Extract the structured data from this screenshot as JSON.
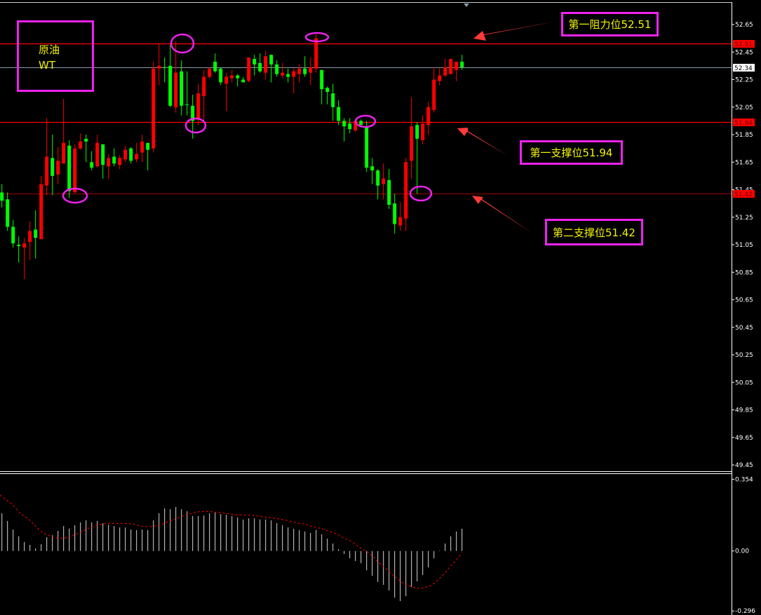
{
  "instrument": {
    "name_line1": "原油",
    "name_line2": "WT"
  },
  "annotations": {
    "resistance1": "第一阻力位52.51",
    "support1": "第一支撑位51.94",
    "support2": "第二支撑位51.42"
  },
  "colors": {
    "up": "#ff0000",
    "down": "#00ff00",
    "annotation": "#ee22ee",
    "text": "#f2f200",
    "level_line": "#ff0000",
    "current_line": "#8899aa",
    "macd_hist": "#d8d8d8",
    "macd_signal": "#ff0000"
  },
  "chart_data": [
    {
      "type": "candlestick",
      "ylim": [
        49.45,
        52.65
      ],
      "yticks": [
        "52.65",
        "52.45",
        "52.25",
        "52.05",
        "51.85",
        "51.65",
        "51.45",
        "51.25",
        "51.05",
        "50.85",
        "50.65",
        "50.45",
        "50.25",
        "50.05",
        "49.85",
        "49.65",
        "49.45"
      ],
      "levels": [
        {
          "value": 52.51,
          "label": "52.51",
          "kind": "resistance"
        },
        {
          "value": 51.94,
          "label": "51.94",
          "kind": "support"
        },
        {
          "value": 51.42,
          "label": "51.42",
          "kind": "support"
        }
      ],
      "last_price": {
        "value": 52.34,
        "label": "52.34"
      },
      "ohlc": [
        [
          51.43,
          51.49,
          51.32,
          51.37
        ],
        [
          51.38,
          51.43,
          51.15,
          51.18
        ],
        [
          51.18,
          51.23,
          51.03,
          51.06
        ],
        [
          51.05,
          51.11,
          50.92,
          51.04
        ],
        [
          51.03,
          51.1,
          50.8,
          51.06
        ],
        [
          51.07,
          51.22,
          50.94,
          51.15
        ],
        [
          51.16,
          51.3,
          50.95,
          51.1
        ],
        [
          51.09,
          51.55,
          51.09,
          51.49
        ],
        [
          51.48,
          51.97,
          51.41,
          51.69
        ],
        [
          51.68,
          51.85,
          51.41,
          51.55
        ],
        [
          51.56,
          51.76,
          51.49,
          51.66
        ],
        [
          51.64,
          52.11,
          51.64,
          51.79
        ],
        [
          51.77,
          51.81,
          51.39,
          51.44
        ],
        [
          51.43,
          51.78,
          51.43,
          51.75
        ],
        [
          51.75,
          51.86,
          51.74,
          51.8
        ],
        [
          51.82,
          51.85,
          51.65,
          51.8
        ],
        [
          51.65,
          51.73,
          51.59,
          51.61
        ],
        [
          51.62,
          51.85,
          51.61,
          51.79
        ],
        [
          51.78,
          51.78,
          51.53,
          51.63
        ],
        [
          51.62,
          51.71,
          51.53,
          51.68
        ],
        [
          51.69,
          51.75,
          51.62,
          51.64
        ],
        [
          51.63,
          51.7,
          51.6,
          51.68
        ],
        [
          51.67,
          51.77,
          51.65,
          51.74
        ],
        [
          51.75,
          51.76,
          51.64,
          51.66
        ],
        [
          51.67,
          51.79,
          51.65,
          51.71
        ],
        [
          51.72,
          51.85,
          51.65,
          51.8
        ],
        [
          51.79,
          51.79,
          51.59,
          51.74
        ],
        [
          51.75,
          52.38,
          51.72,
          52.33
        ],
        [
          52.33,
          52.51,
          52.21,
          52.35
        ],
        [
          52.34,
          52.41,
          52.23,
          52.34
        ],
        [
          52.35,
          52.5,
          52.05,
          52.06
        ],
        [
          52.05,
          52.53,
          52.01,
          52.3
        ],
        [
          52.31,
          52.39,
          51.99,
          52.06
        ],
        [
          52.07,
          52.31,
          51.99,
          52.07
        ],
        [
          52.06,
          52.14,
          51.82,
          51.95
        ],
        [
          51.96,
          52.22,
          51.92,
          52.15
        ],
        [
          52.13,
          52.32,
          51.95,
          52.27
        ],
        [
          52.27,
          52.34,
          52.26,
          52.33
        ],
        [
          52.38,
          52.44,
          52.3,
          52.31
        ],
        [
          52.33,
          52.34,
          52.21,
          52.23
        ],
        [
          52.22,
          52.3,
          52.02,
          52.27
        ],
        [
          52.26,
          52.32,
          52.23,
          52.28
        ],
        [
          52.28,
          52.29,
          52.2,
          52.26
        ],
        [
          52.25,
          52.27,
          52.23,
          52.23
        ],
        [
          52.24,
          52.41,
          52.23,
          52.41
        ],
        [
          52.4,
          52.43,
          52.28,
          52.36
        ],
        [
          52.37,
          52.44,
          52.3,
          52.31
        ],
        [
          52.3,
          52.46,
          52.25,
          52.42
        ],
        [
          52.43,
          52.43,
          52.23,
          52.36
        ],
        [
          52.36,
          52.39,
          52.27,
          52.29
        ],
        [
          52.28,
          52.37,
          52.26,
          52.3
        ],
        [
          52.29,
          52.33,
          52.23,
          52.27
        ],
        [
          52.27,
          52.33,
          52.15,
          52.31
        ],
        [
          52.29,
          52.36,
          52.23,
          52.33
        ],
        [
          52.33,
          52.42,
          52.27,
          52.29
        ],
        [
          52.3,
          52.41,
          52.21,
          52.34
        ],
        [
          52.33,
          52.58,
          52.3,
          52.55
        ],
        [
          52.32,
          52.32,
          52.07,
          52.18
        ],
        [
          52.19,
          52.2,
          52.07,
          52.16
        ],
        [
          52.15,
          52.22,
          51.95,
          52.05
        ],
        [
          52.05,
          52.1,
          51.92,
          51.95
        ],
        [
          51.95,
          51.97,
          51.8,
          51.91
        ],
        [
          51.93,
          51.97,
          51.86,
          51.89
        ],
        [
          51.88,
          51.95,
          51.87,
          51.95
        ],
        [
          51.95,
          51.96,
          51.92,
          51.92
        ],
        [
          51.91,
          51.95,
          51.58,
          51.61
        ],
        [
          51.62,
          51.68,
          51.49,
          51.59
        ],
        [
          51.59,
          51.6,
          51.38,
          51.48
        ],
        [
          51.49,
          51.64,
          51.38,
          51.53
        ],
        [
          51.52,
          51.6,
          51.31,
          51.34
        ],
        [
          51.35,
          51.42,
          51.13,
          51.2
        ],
        [
          51.19,
          51.36,
          51.15,
          51.25
        ],
        [
          51.24,
          51.68,
          51.15,
          51.65
        ],
        [
          51.66,
          52.12,
          51.53,
          51.91
        ],
        [
          51.92,
          51.94,
          51.42,
          51.82
        ],
        [
          51.81,
          51.99,
          51.78,
          51.93
        ],
        [
          51.92,
          52.09,
          51.85,
          52.05
        ],
        [
          52.03,
          52.34,
          52.01,
          52.25
        ],
        [
          52.24,
          52.33,
          52.21,
          52.28
        ],
        [
          52.28,
          52.4,
          52.27,
          52.34
        ],
        [
          52.29,
          52.4,
          52.29,
          52.4
        ],
        [
          52.32,
          52.38,
          52.24,
          52.38
        ],
        [
          52.38,
          52.43,
          52.32,
          52.34
        ]
      ]
    },
    {
      "type": "bar+line",
      "indicator": "MACD",
      "ylim": [
        -0.296,
        0.354
      ],
      "yticks": [
        "0.354",
        "0.00",
        "-0.296"
      ],
      "histogram": [
        0.186,
        0.148,
        0.106,
        0.072,
        0.044,
        0.03,
        0.013,
        0.033,
        0.068,
        0.078,
        0.099,
        0.123,
        0.11,
        0.127,
        0.141,
        0.151,
        0.141,
        0.148,
        0.137,
        0.13,
        0.123,
        0.116,
        0.116,
        0.106,
        0.103,
        0.106,
        0.103,
        0.151,
        0.186,
        0.21,
        0.206,
        0.217,
        0.206,
        0.196,
        0.172,
        0.172,
        0.175,
        0.186,
        0.189,
        0.182,
        0.179,
        0.172,
        0.165,
        0.155,
        0.161,
        0.161,
        0.155,
        0.155,
        0.151,
        0.137,
        0.127,
        0.116,
        0.11,
        0.103,
        0.096,
        0.089,
        0.103,
        0.082,
        0.061,
        0.037,
        0.009,
        -0.015,
        -0.036,
        -0.05,
        -0.06,
        -0.095,
        -0.122,
        -0.153,
        -0.167,
        -0.195,
        -0.23,
        -0.247,
        -0.223,
        -0.178,
        -0.15,
        -0.119,
        -0.081,
        -0.036,
        0.002,
        0.037,
        0.072,
        0.096,
        0.11
      ],
      "signal": [
        0.268,
        0.247,
        0.227,
        0.193,
        0.172,
        0.151,
        0.123,
        0.095,
        0.082,
        0.068,
        0.063,
        0.063,
        0.068,
        0.081,
        0.091,
        0.106,
        0.12,
        0.127,
        0.134,
        0.136,
        0.136,
        0.136,
        0.136,
        0.134,
        0.128,
        0.123,
        0.12,
        0.121,
        0.127,
        0.137,
        0.148,
        0.159,
        0.171,
        0.181,
        0.187,
        0.193,
        0.195,
        0.195,
        0.191,
        0.19,
        0.185,
        0.181,
        0.178,
        0.178,
        0.178,
        0.174,
        0.171,
        0.167,
        0.164,
        0.16,
        0.155,
        0.149,
        0.143,
        0.136,
        0.133,
        0.123,
        0.116,
        0.11,
        0.1,
        0.091,
        0.08,
        0.063,
        0.052,
        0.033,
        0.014,
        -0.003,
        -0.023,
        -0.053,
        -0.076,
        -0.101,
        -0.127,
        -0.148,
        -0.167,
        -0.176,
        -0.185,
        -0.183,
        -0.176,
        -0.161,
        -0.136,
        -0.107,
        -0.073,
        -0.044,
        -0.009
      ]
    }
  ]
}
